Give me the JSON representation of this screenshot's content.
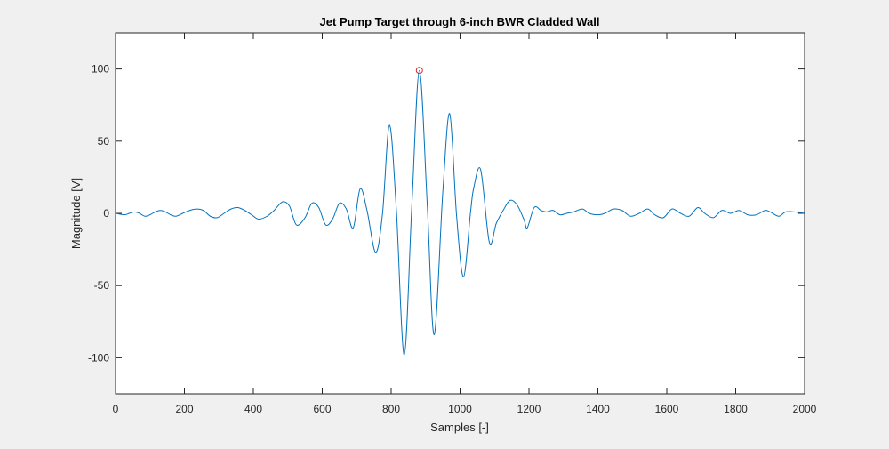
{
  "chart_data": {
    "type": "line",
    "title": "Jet Pump Target through 6-inch BWR Cladded Wall",
    "xlabel": "Samples [-]",
    "ylabel": "Magnitude [V]",
    "xlim": [
      0,
      2000
    ],
    "ylim": [
      -125,
      125
    ],
    "x_ticks": [
      0,
      200,
      400,
      600,
      800,
      1000,
      1200,
      1400,
      1600,
      1800,
      2000
    ],
    "y_ticks": [
      -100,
      -50,
      0,
      50,
      100
    ],
    "x_tick_labels": [
      "0",
      "200",
      "400",
      "600",
      "800",
      "1000",
      "1200",
      "1400",
      "1600",
      "1800",
      "2000"
    ],
    "y_tick_labels": [
      "-100",
      "-50",
      "0",
      "50",
      "100"
    ],
    "grid": false,
    "line_color": "#0072bd",
    "marker_color": "#d62728",
    "series": [
      {
        "x": [
          0,
          25,
          40,
          55,
          70,
          85,
          100,
          115,
          130,
          145,
          160,
          175,
          195,
          215,
          235,
          255,
          275,
          295,
          315,
          335,
          355,
          375,
          395,
          415,
          440,
          460,
          485,
          505,
          525,
          550,
          570,
          590,
          610,
          630,
          650,
          670,
          690,
          710,
          730,
          755,
          775,
          795,
          815,
          838,
          860,
          882,
          905,
          925,
          950,
          970,
          990,
          1010,
          1030,
          1040,
          1060,
          1085,
          1105,
          1125,
          1145,
          1165,
          1185,
          1195,
          1215,
          1235,
          1250,
          1270,
          1290,
          1310,
          1330,
          1355,
          1375,
          1400,
          1420,
          1445,
          1470,
          1495,
          1520,
          1545,
          1565,
          1590,
          1615,
          1640,
          1665,
          1690,
          1710,
          1735,
          1760,
          1785,
          1810,
          1835,
          1860,
          1885,
          1900,
          1925,
          1945,
          1970,
          2000
        ],
        "y": [
          0,
          -1,
          0,
          1,
          0,
          -2,
          -1,
          1,
          2,
          1,
          -1,
          -2,
          0,
          2,
          3,
          2,
          -2,
          -3,
          0,
          3,
          4,
          2,
          -1,
          -4,
          -2,
          2,
          8,
          5,
          -8,
          -3,
          7,
          4,
          -8,
          -4,
          7,
          3,
          -10,
          17,
          2,
          -27,
          0,
          61,
          3,
          -98,
          5,
          99,
          5,
          -84,
          15,
          69,
          -2,
          -44,
          0,
          18,
          30,
          -20,
          -7,
          2,
          9,
          6,
          -4,
          -10,
          4,
          2,
          1,
          2,
          -1,
          0,
          1,
          3,
          0,
          -1,
          0,
          3,
          2,
          -2,
          0,
          3,
          -1,
          -3,
          3,
          0,
          -2,
          4,
          0,
          -3,
          2,
          0,
          2,
          -1,
          -1,
          2,
          1,
          -2,
          1,
          1,
          0
        ]
      }
    ],
    "peak_marker": {
      "x": 882,
      "y": 99
    }
  }
}
